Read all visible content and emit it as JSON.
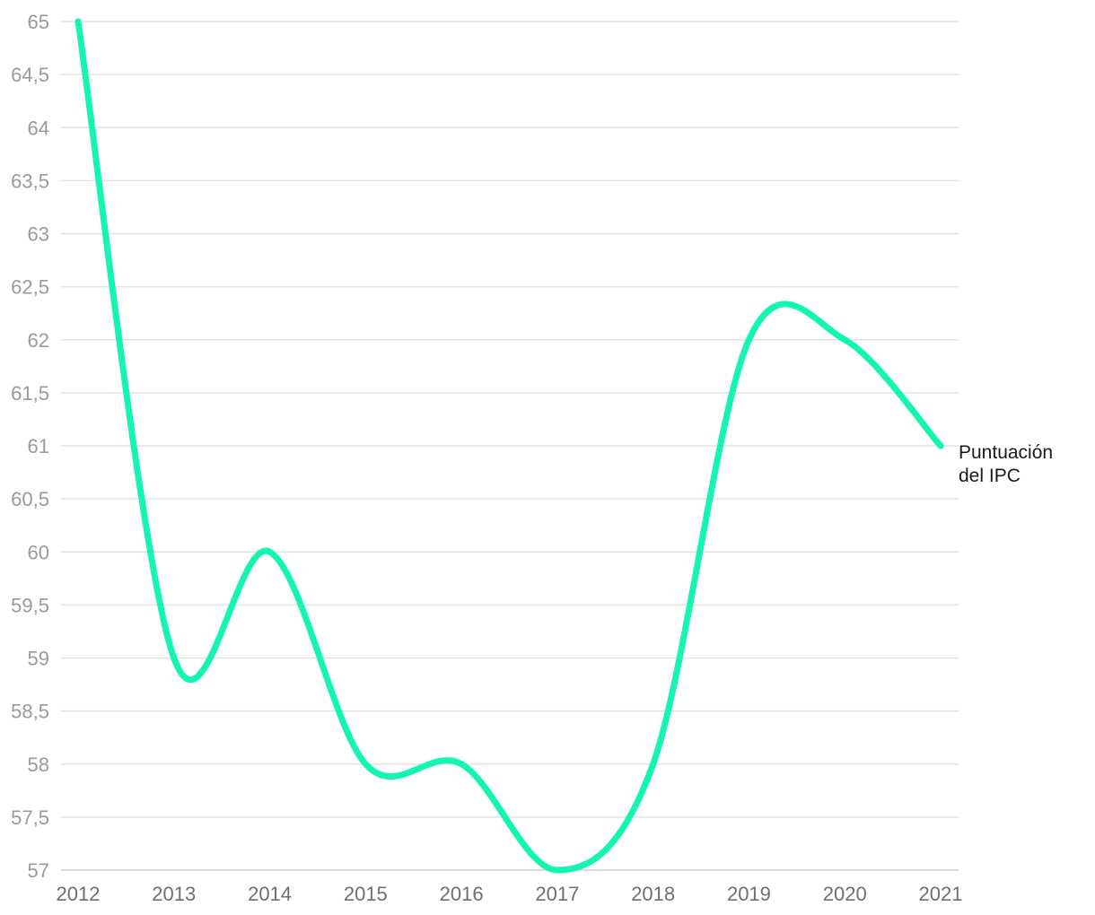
{
  "chart_data": {
    "type": "line",
    "title": "",
    "xlabel": "",
    "ylabel": "",
    "categories": [
      "2012",
      "2013",
      "2014",
      "2015",
      "2016",
      "2017",
      "2018",
      "2019",
      "2020",
      "2021"
    ],
    "series": [
      {
        "name": "Puntuación del IPC",
        "label_lines": [
          "Puntuación",
          "del IPC"
        ],
        "values": [
          65,
          59,
          60,
          58,
          58,
          57,
          58,
          62,
          62,
          61
        ],
        "color": "#13f5b0"
      }
    ],
    "ylim": [
      57,
      65
    ],
    "yticks": [
      57,
      57.5,
      58,
      58.5,
      59,
      59.5,
      60,
      60.5,
      61,
      61.5,
      62,
      62.5,
      63,
      63.5,
      64,
      64.5,
      65
    ],
    "ytick_labels": [
      "57",
      "57,5",
      "58",
      "58,5",
      "59",
      "59,5",
      "60",
      "60,5",
      "61",
      "61,5",
      "62",
      "62,5",
      "63",
      "63,5",
      "64",
      "64,5",
      "65"
    ],
    "grid": true,
    "legend": "end-of-line label",
    "colors": {
      "line": "#13f5b0",
      "grid": "#e2e2e2",
      "tick_text": "#9a9a9a"
    }
  }
}
